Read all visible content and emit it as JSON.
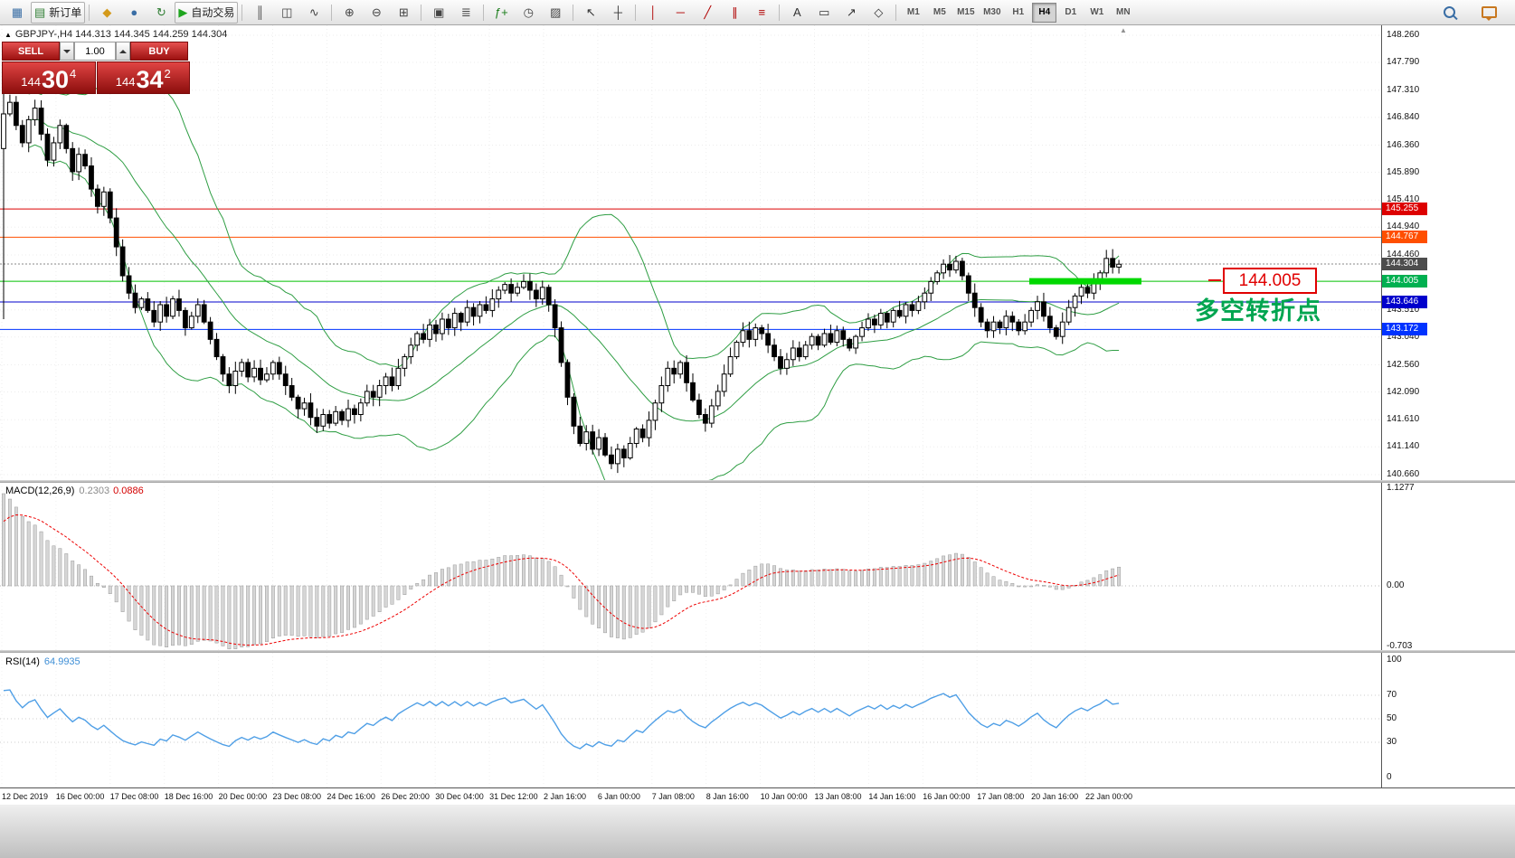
{
  "toolbar": {
    "active_timeframe": "H4",
    "groups": [
      {
        "name": "file",
        "items": [
          {
            "icon": "app-icon",
            "name": "app-icon"
          },
          {
            "icon": "new-order-icon",
            "label": "新订单",
            "name": "new-order-button",
            "bordered": true
          }
        ]
      },
      {
        "name": "accounts",
        "items": [
          {
            "icon": "favorites-icon",
            "name": "favorites-button"
          },
          {
            "icon": "profile-icon",
            "name": "profile-button"
          },
          {
            "icon": "refresh-icon",
            "name": "refresh-button"
          },
          {
            "icon": "auto-trading-icon",
            "label": "自动交易",
            "name": "auto-trading-button",
            "bordered": true
          }
        ]
      },
      {
        "name": "chart-types",
        "items": [
          {
            "icon": "bar-chart-icon",
            "name": "bar-chart-button"
          },
          {
            "icon": "candlestick-icon",
            "name": "candlestick-button"
          },
          {
            "icon": "line-chart-icon",
            "name": "line-chart-button"
          }
        ]
      },
      {
        "name": "zoom",
        "items": [
          {
            "icon": "zoom-in-icon",
            "name": "zoom-in-button"
          },
          {
            "icon": "zoom-out-icon",
            "name": "zoom-out-button"
          },
          {
            "icon": "tile-windows-icon",
            "name": "tile-windows-button"
          }
        ]
      },
      {
        "name": "arrange",
        "items": [
          {
            "icon": "cascade-windows-icon",
            "name": "cascade-button"
          },
          {
            "icon": "arrange-windows-icon",
            "name": "arrange-button"
          }
        ]
      },
      {
        "name": "chart-tools",
        "items": [
          {
            "icon": "indicators-icon",
            "name": "indicators-button"
          },
          {
            "icon": "periods-icon",
            "name": "periods-button"
          },
          {
            "icon": "templates-icon",
            "name": "templates-button"
          }
        ]
      },
      {
        "name": "cursor-tools",
        "items": [
          {
            "icon": "cursor-icon",
            "name": "cursor-button"
          },
          {
            "icon": "crosshair-icon",
            "name": "crosshair-button"
          }
        ]
      },
      {
        "name": "line-tools",
        "items": [
          {
            "icon": "vertical-line-icon",
            "name": "vertical-line-button"
          },
          {
            "icon": "horizontal-line-icon",
            "name": "horizontal-line-button"
          },
          {
            "icon": "trendline-icon",
            "name": "trendline-button"
          },
          {
            "icon": "channel-icon",
            "name": "channel-button"
          },
          {
            "icon": "fibonacci-icon",
            "name": "fibonacci-button"
          }
        ]
      },
      {
        "name": "object-tools",
        "items": [
          {
            "icon": "text-icon",
            "name": "text-button"
          },
          {
            "icon": "text-label-icon",
            "name": "text-label-button"
          },
          {
            "icon": "arrows-icon",
            "name": "arrows-button"
          },
          {
            "icon": "shapes-icon",
            "name": "shapes-button"
          }
        ]
      },
      {
        "name": "timeframes",
        "items": [
          {
            "label": "M1",
            "name": "timeframe-m1"
          },
          {
            "label": "M5",
            "name": "timeframe-m5"
          },
          {
            "label": "M15",
            "name": "timeframe-m15"
          },
          {
            "label": "M30",
            "name": "timeframe-m30"
          },
          {
            "label": "H1",
            "name": "timeframe-h1"
          },
          {
            "label": "H4",
            "name": "timeframe-h4",
            "active": true
          },
          {
            "label": "D1",
            "name": "timeframe-d1"
          },
          {
            "label": "W1",
            "name": "timeframe-w1"
          },
          {
            "label": "MN",
            "name": "timeframe-mn"
          }
        ]
      }
    ],
    "right_items": [
      {
        "icon": "search-icon",
        "name": "search-button"
      },
      {
        "icon": "chat-icon",
        "name": "chat-button"
      }
    ]
  },
  "symbol_info": "GBPJPY-,H4  144.313 144.345 144.259 144.304",
  "trade_panel": {
    "sell_label": "SELL",
    "buy_label": "BUY",
    "volume": "1.00",
    "bid": {
      "prefix": "144",
      "big": "30",
      "sup": "4"
    },
    "ask": {
      "prefix": "144",
      "big": "34",
      "sup": "2"
    }
  },
  "annotations": {
    "price_label": "144.005",
    "note": "多空转折点",
    "note_color": "#00a550",
    "box_color": "#e00000"
  },
  "price_axis": {
    "ticks": [
      "148.260",
      "147.790",
      "147.310",
      "146.840",
      "146.360",
      "145.890",
      "145.410",
      "144.940",
      "144.460",
      "143.510",
      "143.040",
      "142.560",
      "142.090",
      "141.610",
      "141.140",
      "140.660"
    ]
  },
  "macd": {
    "title": "MACD(12,26,9)",
    "value_main": "0.2303",
    "value_signal": "0.0886",
    "ticks": [
      "1.1277",
      "0.00",
      "-0.703"
    ]
  },
  "rsi": {
    "title": "RSI(14)",
    "value": "64.9935",
    "ticks": [
      "100",
      "70",
      "50",
      "30",
      "0"
    ]
  },
  "time_axis": [
    "12 Dec 2019",
    "16 Dec 00:00",
    "17 Dec 08:00",
    "18 Dec 16:00",
    "20 Dec 00:00",
    "23 Dec 08:00",
    "24 Dec 16:00",
    "26 Dec 20:00",
    "30 Dec 04:00",
    "31 Dec 12:00",
    "2 Jan 16:00",
    "6 Jan 00:00",
    "7 Jan 08:00",
    "8 Jan 16:00",
    "10 Jan 00:00",
    "13 Jan 08:00",
    "14 Jan 16:00",
    "16 Jan 00:00",
    "17 Jan 08:00",
    "20 Jan 16:00",
    "22 Jan 00:00"
  ],
  "chart_data": {
    "type": "candlestick",
    "symbol": "GBPJPY",
    "timeframe": "H4",
    "current_ohlc": {
      "open": 144.313,
      "high": 144.345,
      "low": 144.259,
      "close": 144.304
    },
    "y_range": [
      140.66,
      148.26
    ],
    "bollinger": {
      "period": 20,
      "deviation": 2,
      "color": "#2f9e44"
    },
    "first_candle": {
      "o": 146.3,
      "h": 147.25,
      "l": 143.35,
      "c": 146.9
    },
    "closes": [
      146.9,
      147.1,
      146.7,
      146.4,
      146.8,
      147.0,
      146.55,
      146.1,
      146.4,
      146.7,
      146.3,
      145.9,
      146.2,
      146.0,
      145.6,
      145.3,
      145.55,
      145.1,
      144.6,
      144.1,
      143.8,
      143.55,
      143.7,
      143.5,
      143.3,
      143.6,
      143.4,
      143.7,
      143.5,
      143.2,
      143.4,
      143.6,
      143.3,
      143.0,
      142.7,
      142.4,
      142.2,
      142.45,
      142.6,
      142.35,
      142.5,
      142.3,
      142.4,
      142.6,
      142.4,
      142.2,
      142.0,
      141.8,
      141.9,
      141.65,
      141.5,
      141.7,
      141.55,
      141.75,
      141.6,
      141.8,
      141.7,
      141.9,
      142.1,
      142.0,
      142.2,
      142.35,
      142.2,
      142.5,
      142.7,
      142.9,
      143.1,
      143.0,
      143.25,
      143.1,
      143.35,
      143.2,
      143.45,
      143.3,
      143.55,
      143.4,
      143.6,
      143.5,
      143.7,
      143.85,
      143.95,
      143.8,
      143.9,
      144.0,
      143.85,
      143.7,
      143.9,
      143.6,
      143.2,
      142.6,
      142.0,
      141.5,
      141.2,
      141.4,
      141.1,
      141.3,
      141.0,
      140.85,
      141.1,
      140.95,
      141.2,
      141.45,
      141.3,
      141.6,
      141.9,
      142.2,
      142.5,
      142.4,
      142.6,
      142.25,
      141.95,
      141.7,
      141.55,
      141.85,
      142.1,
      142.4,
      142.7,
      142.95,
      143.15,
      143.0,
      143.2,
      143.1,
      142.9,
      142.7,
      142.5,
      142.65,
      142.85,
      142.7,
      142.9,
      143.05,
      142.9,
      143.1,
      142.95,
      143.15,
      143.0,
      142.85,
      143.05,
      143.2,
      143.35,
      143.25,
      143.45,
      143.3,
      143.5,
      143.4,
      143.6,
      143.5,
      143.65,
      143.8,
      144.0,
      144.15,
      144.3,
      144.2,
      144.35,
      144.1,
      143.8,
      143.55,
      143.3,
      143.15,
      143.3,
      143.2,
      143.4,
      143.3,
      143.15,
      143.3,
      143.5,
      143.65,
      143.4,
      143.2,
      143.05,
      143.3,
      143.55,
      143.75,
      143.9,
      143.8,
      144.0,
      144.15,
      144.4,
      144.25,
      144.3
    ],
    "hlines": [
      {
        "price": 145.255,
        "color": "#dd0000",
        "style": "solid",
        "tag": "145.255",
        "tag_bg": "#dd0000"
      },
      {
        "price": 144.767,
        "color": "#ff4f00",
        "style": "solid",
        "tag": "144.767",
        "tag_bg": "#ff4f00"
      },
      {
        "price": 144.304,
        "color": "#888888",
        "style": "dotted",
        "tag": "144.304",
        "tag_bg": "#4d4d4d"
      },
      {
        "price": 144.005,
        "color": "#00c000",
        "style": "solid",
        "tag": "144.005",
        "tag_bg": "#00b050"
      },
      {
        "price": 143.646,
        "color": "#0000cc",
        "style": "solid",
        "tag": "143.646",
        "tag_bg": "#0000cc"
      },
      {
        "price": 143.172,
        "color": "#0033ff",
        "style": "solid",
        "tag": "143.172",
        "tag_bg": "#0033ff"
      }
    ],
    "highlight_segment": {
      "price": 144.005,
      "color": "#00d800"
    }
  }
}
